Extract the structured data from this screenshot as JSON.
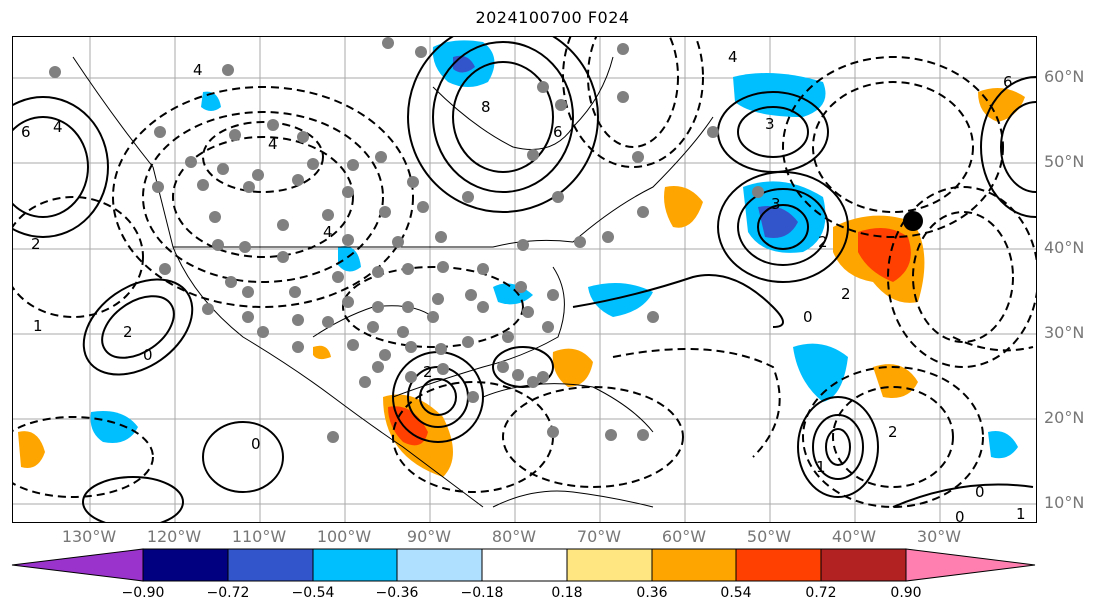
{
  "title": "2024100700 F024",
  "lon_labels": [
    "130°W",
    "120°W",
    "110°W",
    "100°W",
    "90°W",
    "80°W",
    "70°W",
    "60°W",
    "50°W",
    "40°W",
    "30°W"
  ],
  "lat_labels": [
    "60°N",
    "50°N",
    "40°N",
    "30°N",
    "20°N",
    "10°N"
  ],
  "colorbar": {
    "ticks": [
      "−0.90",
      "−0.72",
      "−0.54",
      "−0.36",
      "−0.18",
      "0.18",
      "0.36",
      "0.54",
      "0.72",
      "0.90"
    ],
    "colors": [
      "#9933cc",
      "#000080",
      "#3355cc",
      "#00bfff",
      "#b0e0ff",
      "#ffffff",
      "#ffe680",
      "#ffa500",
      "#ff4000",
      "#b22222",
      "#ff80b0"
    ]
  },
  "contour_labels": [
    "4",
    "6",
    "4",
    "8",
    "6",
    "3",
    "4",
    "3",
    "2",
    "0",
    "2",
    "1",
    "2",
    "0",
    "0",
    "1",
    "2",
    "0",
    "0",
    "1",
    "2",
    "6",
    "4",
    "2",
    "4"
  ],
  "marker": "storm-position"
}
